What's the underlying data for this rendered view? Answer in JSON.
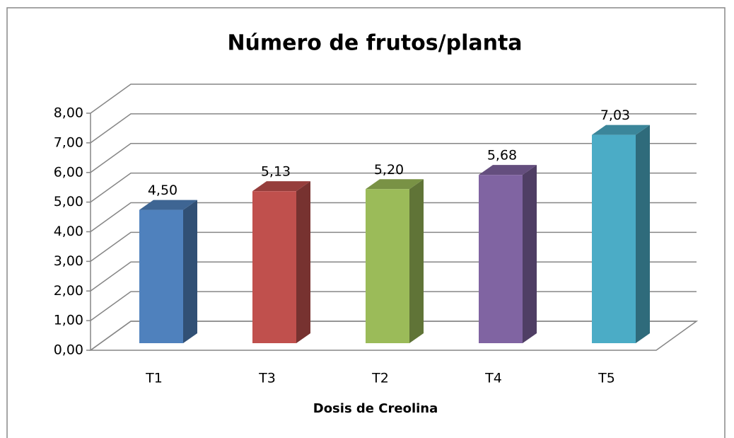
{
  "chart_data": {
    "type": "bar3d",
    "title": "Número de frutos/planta",
    "x_label": "Dosis de Creolina",
    "categories": [
      "T1",
      "T3",
      "T2",
      "T4",
      "T5"
    ],
    "values": [
      4.5,
      5.13,
      5.2,
      5.68,
      7.03
    ],
    "value_labels": [
      "4,50",
      "5,13",
      "5,20",
      "5,68",
      "7,03"
    ],
    "colors": [
      "#4f81bd",
      "#c0504d",
      "#9bbb59",
      "#8064a2",
      "#4bacc6"
    ],
    "ylim": [
      0,
      8
    ],
    "yticks": [
      {
        "value": 0,
        "label": "0,00"
      },
      {
        "value": 1,
        "label": "1,00"
      },
      {
        "value": 2,
        "label": "2,00"
      },
      {
        "value": 3,
        "label": "3,00"
      },
      {
        "value": 4,
        "label": "4,00"
      },
      {
        "value": 5,
        "label": "5,00"
      },
      {
        "value": 6,
        "label": "6,00"
      },
      {
        "value": 7,
        "label": "7,00"
      },
      {
        "value": 8,
        "label": "8,00"
      }
    ],
    "grid": true
  }
}
